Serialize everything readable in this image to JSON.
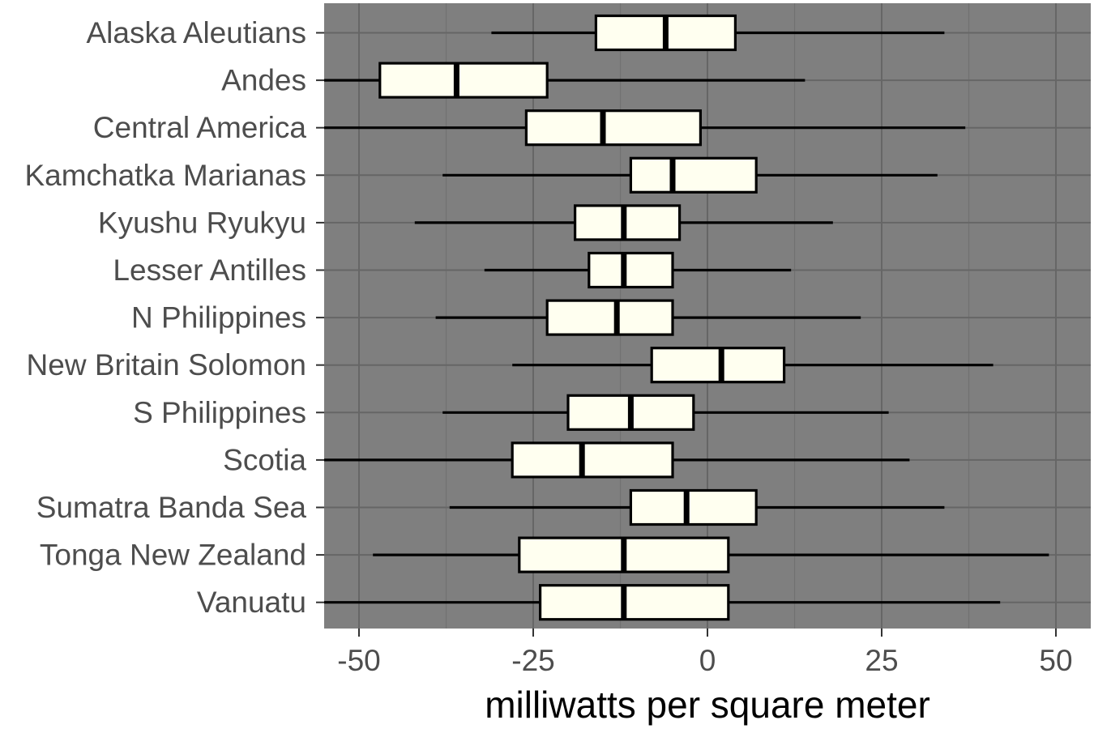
{
  "chart_data": {
    "type": "boxplot",
    "orientation": "horizontal",
    "title": "",
    "xlabel": "milliwatts per square meter",
    "ylabel": "",
    "xlim": [
      -55,
      55
    ],
    "x_ticks": [
      -50,
      -25,
      0,
      25,
      50
    ],
    "x_tick_labels": [
      "-50",
      "-25",
      "0",
      "25",
      "50"
    ],
    "grid": true,
    "legend": "none",
    "colors": {
      "panel_background": "#7f7f7f",
      "grid_major": "#666666",
      "grid_minor": "#717171",
      "box_fill": "#fffff0",
      "box_stroke": "#000000",
      "axis_text": "#4d4d4d",
      "axis_title": "#000000"
    },
    "categories": [
      "Alaska Aleutians",
      "Andes",
      "Central America",
      "Kamchatka Marianas",
      "Kyushu Ryukyu",
      "Lesser Antilles",
      "N Philippines",
      "New Britain Solomon",
      "S Philippines",
      "Scotia",
      "Sumatra Banda Sea",
      "Tonga New Zealand",
      "Vanuatu"
    ],
    "boxes": [
      {
        "category": "Alaska Aleutians",
        "whisker_low": -31,
        "q1": -16,
        "median": -6,
        "q3": 4,
        "whisker_high": 34
      },
      {
        "category": "Andes",
        "whisker_low": -55,
        "q1": -47,
        "median": -36,
        "q3": -23,
        "whisker_high": 14
      },
      {
        "category": "Central America",
        "whisker_low": -55,
        "q1": -26,
        "median": -15,
        "q3": -1,
        "whisker_high": 37
      },
      {
        "category": "Kamchatka Marianas",
        "whisker_low": -38,
        "q1": -11,
        "median": -5,
        "q3": 7,
        "whisker_high": 33
      },
      {
        "category": "Kyushu Ryukyu",
        "whisker_low": -42,
        "q1": -19,
        "median": -12,
        "q3": -4,
        "whisker_high": 18
      },
      {
        "category": "Lesser Antilles",
        "whisker_low": -32,
        "q1": -17,
        "median": -12,
        "q3": -5,
        "whisker_high": 12
      },
      {
        "category": "N Philippines",
        "whisker_low": -39,
        "q1": -23,
        "median": -13,
        "q3": -5,
        "whisker_high": 22
      },
      {
        "category": "New Britain Solomon",
        "whisker_low": -28,
        "q1": -8,
        "median": 2,
        "q3": 11,
        "whisker_high": 41
      },
      {
        "category": "S Philippines",
        "whisker_low": -38,
        "q1": -20,
        "median": -11,
        "q3": -2,
        "whisker_high": 26
      },
      {
        "category": "Scotia",
        "whisker_low": -55,
        "q1": -28,
        "median": -18,
        "q3": -5,
        "whisker_high": 29
      },
      {
        "category": "Sumatra Banda Sea",
        "whisker_low": -37,
        "q1": -11,
        "median": -3,
        "q3": 7,
        "whisker_high": 34
      },
      {
        "category": "Tonga New Zealand",
        "whisker_low": -48,
        "q1": -27,
        "median": -12,
        "q3": 3,
        "whisker_high": 49
      },
      {
        "category": "Vanuatu",
        "whisker_low": -55,
        "q1": -24,
        "median": -12,
        "q3": 3,
        "whisker_high": 42
      }
    ]
  }
}
